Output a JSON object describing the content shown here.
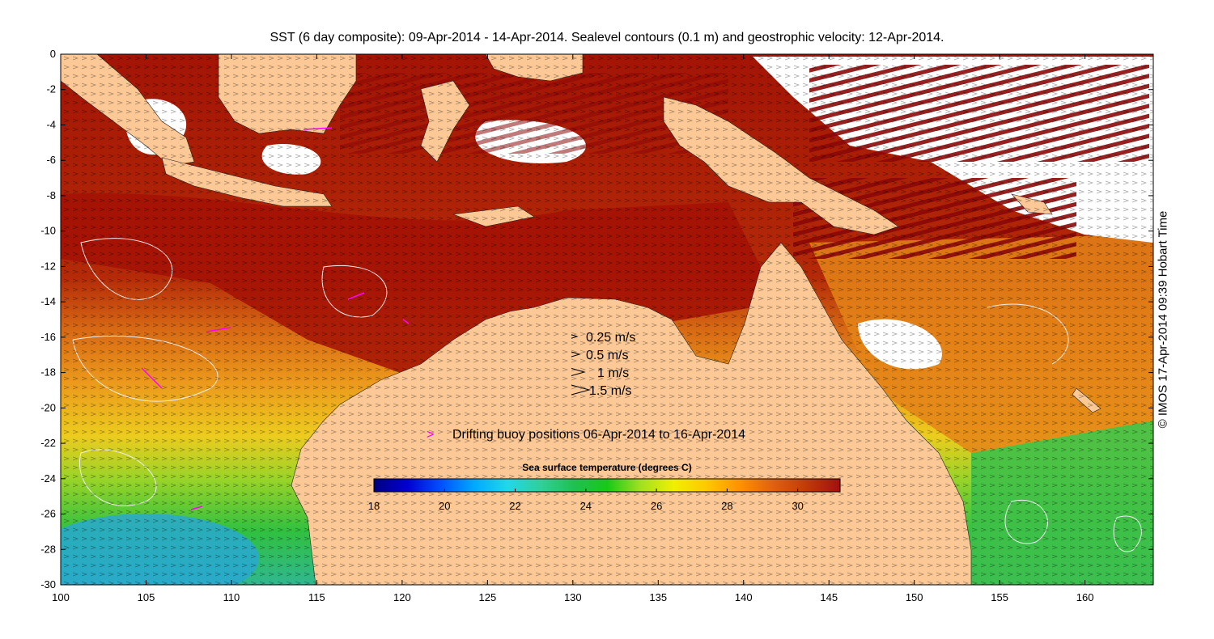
{
  "title": "SST (6 day composite): 09-Apr-2014 - 14-Apr-2014. Sealevel contours (0.1 m) and geostrophic velocity: 12-Apr-2014.",
  "credit": "© IMOS 17-Apr-2014 09:39 Hobart Time",
  "axes": {
    "x_ticks": [
      "100",
      "105",
      "110",
      "115",
      "120",
      "125",
      "130",
      "135",
      "140",
      "145",
      "150",
      "155",
      "160"
    ],
    "y_ticks": [
      "0",
      "-2",
      "-4",
      "-6",
      "-8",
      "-10",
      "-12",
      "-14",
      "-16",
      "-18",
      "-20",
      "-22",
      "-24",
      "-26",
      "-28",
      "-30"
    ],
    "lon_range": [
      100,
      164
    ],
    "lat_range": [
      -30,
      0
    ]
  },
  "velocity_legend": [
    {
      "label": "0.25 m/s",
      "speed": 0.25
    },
    {
      "label": "0.5 m/s",
      "speed": 0.5
    },
    {
      "label": "1 m/s",
      "speed": 1
    },
    {
      "label": "1.5 m/s",
      "speed": 1.5
    }
  ],
  "buoy_legend": {
    "symbol": ">",
    "label": "Drifting buoy positions 06-Apr-2014 to 16-Apr-2014",
    "color": "#ff00ff"
  },
  "colorbar": {
    "title": "Sea surface temperature (degrees C)",
    "ticks": [
      "18",
      "20",
      "22",
      "24",
      "26",
      "28",
      "30"
    ],
    "range": [
      18,
      31.2
    ],
    "colors": [
      "#00007f",
      "#0000d0",
      "#0050ff",
      "#00a8ff",
      "#20d8e8",
      "#30d09a",
      "#20c050",
      "#18c818",
      "#a0e020",
      "#f0f000",
      "#ffc800",
      "#ff9000",
      "#e06010",
      "#c03a08",
      "#a01010"
    ]
  },
  "colors": {
    "land": "#fbc896",
    "ocean_hot": "#a31405",
    "ocean_warm": "#c0440c",
    "ocean_orange": "#e8841a",
    "ocean_yellow": "#f2c018",
    "ocean_green": "#6ccf32",
    "ocean_cool": "#28b868",
    "cloud": "#ffffff",
    "contour": "#e8e8e8"
  }
}
